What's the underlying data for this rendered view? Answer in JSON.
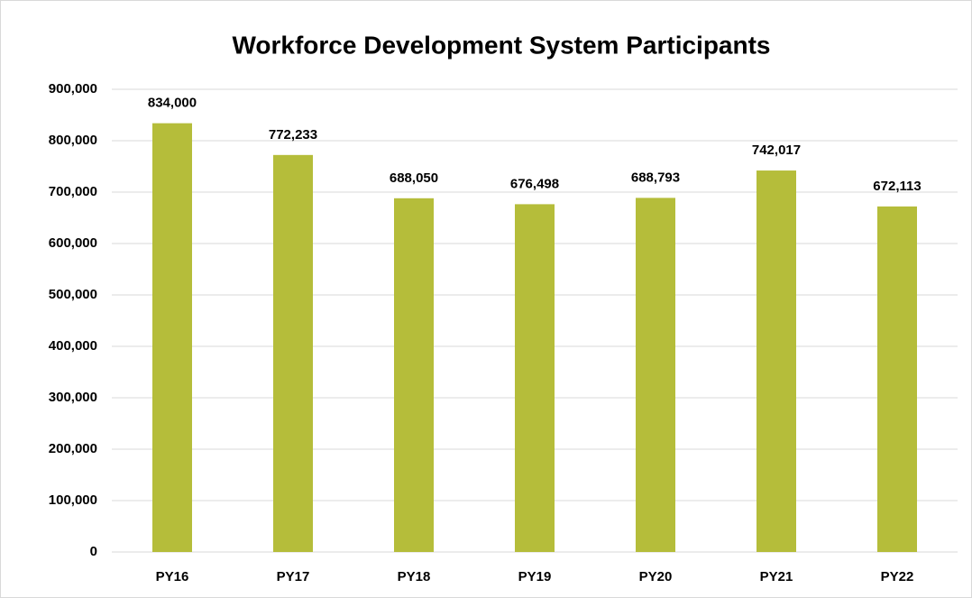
{
  "chart_data": {
    "type": "bar",
    "title": "Workforce Development System Participants",
    "categories": [
      "PY16",
      "PY17",
      "PY18",
      "PY19",
      "PY20",
      "PY21",
      "PY22"
    ],
    "values": [
      834000,
      772233,
      688050,
      676498,
      688793,
      742017,
      672113
    ],
    "value_labels": [
      "834,000",
      "772,233",
      "688,050",
      "676,498",
      "688,793",
      "742,017",
      "672,113"
    ],
    "color": "#b5bd3a",
    "ylim": [
      0,
      900000
    ],
    "yticks": [
      0,
      {
        "value": 100000,
        "label": "100,000"
      },
      {
        "value": 200000,
        "label": "200,000"
      },
      {
        "value": 300000,
        "label": "300,000"
      },
      {
        "value": 400000,
        "label": "400,000"
      },
      {
        "value": 500000,
        "label": "500,000"
      },
      {
        "value": 600000,
        "label": "600,000"
      },
      {
        "value": 700000,
        "label": "700,000"
      },
      {
        "value": 800000,
        "label": "800,000"
      },
      {
        "value": 900000,
        "label": "900,000"
      }
    ],
    "grid": true
  }
}
